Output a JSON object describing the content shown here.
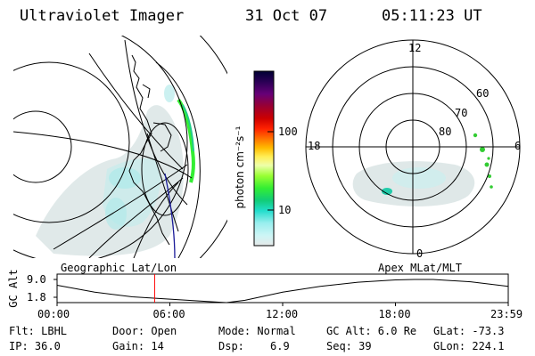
{
  "header": {
    "instrument": "Ultraviolet Imager",
    "date": "31 Oct 07",
    "time": "05:11:23 UT"
  },
  "panels": {
    "left_label": "Geographic Lat/Lon",
    "right_label": "Apex MLat/MLT"
  },
  "colorbar": {
    "unit_label": "photon cm⁻²s⁻¹",
    "ticks": [
      "100",
      "10"
    ],
    "colors": [
      "#000033",
      "#2a0055",
      "#660077",
      "#990033",
      "#cc0000",
      "#ff2200",
      "#ff7700",
      "#ffbb00",
      "#ffee55",
      "#eeffaa",
      "#99ff33",
      "#33ee33",
      "#11cc77",
      "#22ddcc",
      "#99eeee",
      "#ccf5f5",
      "#e6eaea"
    ]
  },
  "polar": {
    "mlt_labels": [
      "12",
      "18",
      "6",
      "0"
    ],
    "lat_labels": [
      "60",
      "70",
      "80"
    ]
  },
  "altitude_plot": {
    "y_label": "GC Alt",
    "y_ticks": [
      "9.0",
      "1.8"
    ],
    "x_ticks": [
      "00:00",
      "06:00",
      "12:00",
      "18:00",
      "23:59"
    ],
    "marker_time_hours": 5.19
  },
  "info": {
    "row1": {
      "filter": "Flt: LBHL",
      "door": "Door: Open",
      "mode": "Mode: Normal",
      "gc_alt": "GC Alt: 6.0 Re",
      "glat": "GLat: -73.3"
    },
    "row2": {
      "ip": "IP: 36.0",
      "gain": "Gain: 14",
      "dsp_label": "Dsp:",
      "dsp_value": "6.9",
      "seq": "Seq: 39",
      "glon": "GLon: 224.1"
    }
  }
}
